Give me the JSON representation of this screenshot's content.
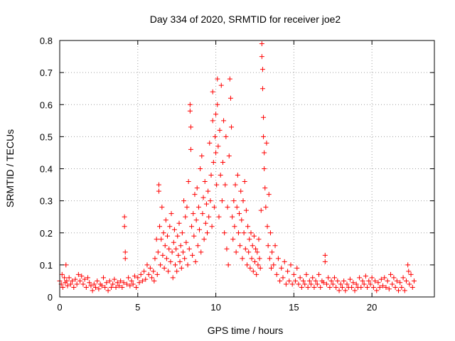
{
  "chart_data": {
    "type": "scatter",
    "title": "Day 334 of 2020, SRMTID for receiver joe2",
    "xlabel": "GPS time / hours",
    "ylabel": "SRMTID / TECUs",
    "xlim": [
      0,
      24
    ],
    "ylim": [
      0,
      0.8
    ],
    "xticks": [
      "0",
      "5",
      "10",
      "15",
      "20"
    ],
    "yticks": [
      "0",
      "0.1",
      "0.2",
      "0.3",
      "0.4",
      "0.5",
      "0.6",
      "0.7",
      "0.8"
    ],
    "grid": true,
    "marker": "+",
    "color": "#ff0000",
    "series": [
      {
        "name": "joe2",
        "points": [
          [
            0.0,
            0.05
          ],
          [
            0.1,
            0.04
          ],
          [
            0.15,
            0.07
          ],
          [
            0.2,
            0.03
          ],
          [
            0.3,
            0.06
          ],
          [
            0.35,
            0.045
          ],
          [
            0.4,
            0.1
          ],
          [
            0.45,
            0.05
          ],
          [
            0.5,
            0.035
          ],
          [
            0.6,
            0.06
          ],
          [
            0.7,
            0.04
          ],
          [
            0.8,
            0.05
          ],
          [
            0.9,
            0.03
          ],
          [
            1.0,
            0.055
          ],
          [
            1.1,
            0.04
          ],
          [
            1.2,
            0.07
          ],
          [
            1.3,
            0.05
          ],
          [
            1.4,
            0.065
          ],
          [
            1.5,
            0.04
          ],
          [
            1.6,
            0.055
          ],
          [
            1.7,
            0.03
          ],
          [
            1.8,
            0.06
          ],
          [
            1.9,
            0.045
          ],
          [
            2.0,
            0.035
          ],
          [
            2.1,
            0.02
          ],
          [
            2.2,
            0.04
          ],
          [
            2.3,
            0.03
          ],
          [
            2.4,
            0.05
          ],
          [
            2.5,
            0.025
          ],
          [
            2.6,
            0.04
          ],
          [
            2.7,
            0.035
          ],
          [
            2.8,
            0.06
          ],
          [
            2.9,
            0.03
          ],
          [
            3.0,
            0.045
          ],
          [
            3.1,
            0.02
          ],
          [
            3.2,
            0.05
          ],
          [
            3.3,
            0.03
          ],
          [
            3.4,
            0.04
          ],
          [
            3.5,
            0.055
          ],
          [
            3.6,
            0.03
          ],
          [
            3.7,
            0.045
          ],
          [
            3.8,
            0.035
          ],
          [
            3.9,
            0.05
          ],
          [
            4.0,
            0.03
          ],
          [
            4.1,
            0.045
          ],
          [
            4.15,
            0.25
          ],
          [
            4.15,
            0.22
          ],
          [
            4.2,
            0.14
          ],
          [
            4.2,
            0.12
          ],
          [
            4.3,
            0.04
          ],
          [
            4.4,
            0.06
          ],
          [
            4.5,
            0.035
          ],
          [
            4.6,
            0.05
          ],
          [
            4.7,
            0.04
          ],
          [
            4.8,
            0.065
          ],
          [
            4.9,
            0.03
          ],
          [
            5.0,
            0.06
          ],
          [
            5.1,
            0.045
          ],
          [
            5.2,
            0.07
          ],
          [
            5.3,
            0.05
          ],
          [
            5.4,
            0.08
          ],
          [
            5.5,
            0.055
          ],
          [
            5.6,
            0.1
          ],
          [
            5.7,
            0.07
          ],
          [
            5.8,
            0.09
          ],
          [
            5.9,
            0.06
          ],
          [
            6.0,
            0.08
          ],
          [
            6.05,
            0.05
          ],
          [
            6.1,
            0.12
          ],
          [
            6.2,
            0.18
          ],
          [
            6.25,
            0.07
          ],
          [
            6.3,
            0.14
          ],
          [
            6.35,
            0.35
          ],
          [
            6.35,
            0.33
          ],
          [
            6.4,
            0.22
          ],
          [
            6.45,
            0.1
          ],
          [
            6.5,
            0.18
          ],
          [
            6.55,
            0.28
          ],
          [
            6.6,
            0.13
          ],
          [
            6.65,
            0.2
          ],
          [
            6.7,
            0.09
          ],
          [
            6.75,
            0.16
          ],
          [
            6.8,
            0.24
          ],
          [
            6.85,
            0.12
          ],
          [
            6.9,
            0.19
          ],
          [
            6.95,
            0.08
          ],
          [
            7.0,
            0.15
          ],
          [
            7.05,
            0.22
          ],
          [
            7.1,
            0.11
          ],
          [
            7.15,
            0.26
          ],
          [
            7.2,
            0.14
          ],
          [
            7.25,
            0.06
          ],
          [
            7.3,
            0.17
          ],
          [
            7.35,
            0.21
          ],
          [
            7.4,
            0.1
          ],
          [
            7.45,
            0.15
          ],
          [
            7.5,
            0.08
          ],
          [
            7.55,
            0.19
          ],
          [
            7.6,
            0.13
          ],
          [
            7.65,
            0.23
          ],
          [
            7.7,
            0.11
          ],
          [
            7.75,
            0.16
          ],
          [
            7.8,
            0.09
          ],
          [
            7.85,
            0.2
          ],
          [
            7.9,
            0.14
          ],
          [
            7.95,
            0.3
          ],
          [
            8.0,
            0.12
          ],
          [
            8.05,
            0.25
          ],
          [
            8.1,
            0.17
          ],
          [
            8.15,
            0.28
          ],
          [
            8.2,
            0.1
          ],
          [
            8.25,
            0.36
          ],
          [
            8.3,
            0.15
          ],
          [
            8.35,
            0.6
          ],
          [
            8.35,
            0.58
          ],
          [
            8.4,
            0.53
          ],
          [
            8.4,
            0.46
          ],
          [
            8.45,
            0.22
          ],
          [
            8.5,
            0.13
          ],
          [
            8.55,
            0.26
          ],
          [
            8.6,
            0.19
          ],
          [
            8.65,
            0.32
          ],
          [
            8.7,
            0.11
          ],
          [
            8.75,
            0.24
          ],
          [
            8.8,
            0.34
          ],
          [
            8.85,
            0.16
          ],
          [
            8.9,
            0.28
          ],
          [
            8.95,
            0.21
          ],
          [
            9.0,
            0.4
          ],
          [
            9.05,
            0.14
          ],
          [
            9.1,
            0.44
          ],
          [
            9.15,
            0.26
          ],
          [
            9.2,
            0.31
          ],
          [
            9.25,
            0.18
          ],
          [
            9.3,
            0.36
          ],
          [
            9.35,
            0.23
          ],
          [
            9.4,
            0.29
          ],
          [
            9.45,
            0.2
          ],
          [
            9.5,
            0.33
          ],
          [
            9.55,
            0.25
          ],
          [
            9.6,
            0.48
          ],
          [
            9.65,
            0.3
          ],
          [
            9.7,
            0.38
          ],
          [
            9.75,
            0.22
          ],
          [
            9.8,
            0.64
          ],
          [
            9.8,
            0.55
          ],
          [
            9.85,
            0.42
          ],
          [
            9.9,
            0.28
          ],
          [
            9.95,
            0.5
          ],
          [
            10.0,
            0.57
          ],
          [
            10.0,
            0.45
          ],
          [
            10.05,
            0.35
          ],
          [
            10.1,
            0.68
          ],
          [
            10.1,
            0.6
          ],
          [
            10.15,
            0.47
          ],
          [
            10.2,
            0.25
          ],
          [
            10.25,
            0.52
          ],
          [
            10.3,
            0.38
          ],
          [
            10.35,
            0.66
          ],
          [
            10.4,
            0.3
          ],
          [
            10.45,
            0.42
          ],
          [
            10.5,
            0.55
          ],
          [
            10.55,
            0.2
          ],
          [
            10.6,
            0.35
          ],
          [
            10.65,
            0.5
          ],
          [
            10.7,
            0.15
          ],
          [
            10.75,
            0.28
          ],
          [
            10.8,
            0.1
          ],
          [
            10.85,
            0.44
          ],
          [
            10.9,
            0.68
          ],
          [
            10.95,
            0.62
          ],
          [
            11.0,
            0.53
          ],
          [
            11.05,
            0.25
          ],
          [
            11.1,
            0.18
          ],
          [
            11.15,
            0.3
          ],
          [
            11.2,
            0.22
          ],
          [
            11.25,
            0.35
          ],
          [
            11.3,
            0.14
          ],
          [
            11.35,
            0.28
          ],
          [
            11.4,
            0.38
          ],
          [
            11.45,
            0.2
          ],
          [
            11.5,
            0.26
          ],
          [
            11.55,
            0.16
          ],
          [
            11.6,
            0.33
          ],
          [
            11.65,
            0.24
          ],
          [
            11.7,
            0.12
          ],
          [
            11.75,
            0.3
          ],
          [
            11.8,
            0.2
          ],
          [
            11.85,
            0.36
          ],
          [
            11.9,
            0.15
          ],
          [
            11.95,
            0.27
          ],
          [
            12.0,
            0.1
          ],
          [
            12.05,
            0.22
          ],
          [
            12.1,
            0.14
          ],
          [
            12.15,
            0.18
          ],
          [
            12.2,
            0.09
          ],
          [
            12.25,
            0.2
          ],
          [
            12.3,
            0.12
          ],
          [
            12.35,
            0.16
          ],
          [
            12.4,
            0.08
          ],
          [
            12.45,
            0.19
          ],
          [
            12.5,
            0.11
          ],
          [
            12.55,
            0.15
          ],
          [
            12.6,
            0.07
          ],
          [
            12.65,
            0.14
          ],
          [
            12.7,
            0.1
          ],
          [
            12.75,
            0.18
          ],
          [
            12.8,
            0.12
          ],
          [
            12.85,
            0.09
          ],
          [
            12.9,
            0.27
          ],
          [
            12.95,
            0.79
          ],
          [
            12.95,
            0.75
          ],
          [
            13.0,
            0.71
          ],
          [
            13.0,
            0.65
          ],
          [
            13.05,
            0.56
          ],
          [
            13.05,
            0.5
          ],
          [
            13.1,
            0.45
          ],
          [
            13.1,
            0.4
          ],
          [
            13.15,
            0.34
          ],
          [
            13.2,
            0.28
          ],
          [
            13.25,
            0.48
          ],
          [
            13.3,
            0.22
          ],
          [
            13.35,
            0.16
          ],
          [
            13.4,
            0.32
          ],
          [
            13.45,
            0.12
          ],
          [
            13.5,
            0.2
          ],
          [
            13.55,
            0.09
          ],
          [
            13.6,
            0.14
          ],
          [
            13.7,
            0.1
          ],
          [
            13.8,
            0.16
          ],
          [
            13.9,
            0.07
          ],
          [
            14.0,
            0.12
          ],
          [
            14.1,
            0.05
          ],
          [
            14.2,
            0.09
          ],
          [
            14.3,
            0.06
          ],
          [
            14.4,
            0.11
          ],
          [
            14.5,
            0.04
          ],
          [
            14.6,
            0.08
          ],
          [
            14.7,
            0.05
          ],
          [
            14.8,
            0.1
          ],
          [
            14.9,
            0.04
          ],
          [
            15.0,
            0.07
          ],
          [
            15.1,
            0.05
          ],
          [
            15.2,
            0.09
          ],
          [
            15.3,
            0.04
          ],
          [
            15.4,
            0.06
          ],
          [
            15.5,
            0.03
          ],
          [
            15.6,
            0.05
          ],
          [
            15.7,
            0.04
          ],
          [
            15.8,
            0.07
          ],
          [
            15.9,
            0.03
          ],
          [
            16.0,
            0.05
          ],
          [
            16.1,
            0.04
          ],
          [
            16.2,
            0.06
          ],
          [
            16.3,
            0.03
          ],
          [
            16.4,
            0.05
          ],
          [
            16.5,
            0.04
          ],
          [
            16.6,
            0.07
          ],
          [
            16.7,
            0.03
          ],
          [
            16.8,
            0.05
          ],
          [
            16.9,
            0.045
          ],
          [
            17.0,
            0.13
          ],
          [
            17.0,
            0.11
          ],
          [
            17.1,
            0.04
          ],
          [
            17.2,
            0.06
          ],
          [
            17.3,
            0.03
          ],
          [
            17.4,
            0.05
          ],
          [
            17.5,
            0.04
          ],
          [
            17.6,
            0.06
          ],
          [
            17.7,
            0.03
          ],
          [
            17.8,
            0.05
          ],
          [
            17.9,
            0.02
          ],
          [
            18.0,
            0.04
          ],
          [
            18.1,
            0.03
          ],
          [
            18.2,
            0.05
          ],
          [
            18.3,
            0.02
          ],
          [
            18.4,
            0.04
          ],
          [
            18.5,
            0.03
          ],
          [
            18.6,
            0.055
          ],
          [
            18.7,
            0.03
          ],
          [
            18.8,
            0.045
          ],
          [
            18.9,
            0.02
          ],
          [
            19.0,
            0.04
          ],
          [
            19.1,
            0.03
          ],
          [
            19.2,
            0.06
          ],
          [
            19.3,
            0.03
          ],
          [
            19.4,
            0.05
          ],
          [
            19.5,
            0.04
          ],
          [
            19.6,
            0.065
          ],
          [
            19.7,
            0.03
          ],
          [
            19.8,
            0.05
          ],
          [
            19.9,
            0.04
          ],
          [
            20.0,
            0.06
          ],
          [
            20.1,
            0.03
          ],
          [
            20.2,
            0.05
          ],
          [
            20.3,
            0.02
          ],
          [
            20.4,
            0.045
          ],
          [
            20.5,
            0.03
          ],
          [
            20.6,
            0.055
          ],
          [
            20.7,
            0.035
          ],
          [
            20.8,
            0.06
          ],
          [
            20.9,
            0.03
          ],
          [
            21.0,
            0.05
          ],
          [
            21.1,
            0.025
          ],
          [
            21.2,
            0.07
          ],
          [
            21.3,
            0.04
          ],
          [
            21.4,
            0.06
          ],
          [
            21.5,
            0.03
          ],
          [
            21.6,
            0.05
          ],
          [
            21.7,
            0.02
          ],
          [
            21.8,
            0.045
          ],
          [
            21.9,
            0.03
          ],
          [
            22.0,
            0.06
          ],
          [
            22.1,
            0.02
          ],
          [
            22.2,
            0.05
          ],
          [
            22.3,
            0.1
          ],
          [
            22.35,
            0.08
          ],
          [
            22.4,
            0.04
          ],
          [
            22.5,
            0.07
          ],
          [
            22.6,
            0.03
          ],
          [
            22.7,
            0.05
          ]
        ]
      }
    ]
  }
}
